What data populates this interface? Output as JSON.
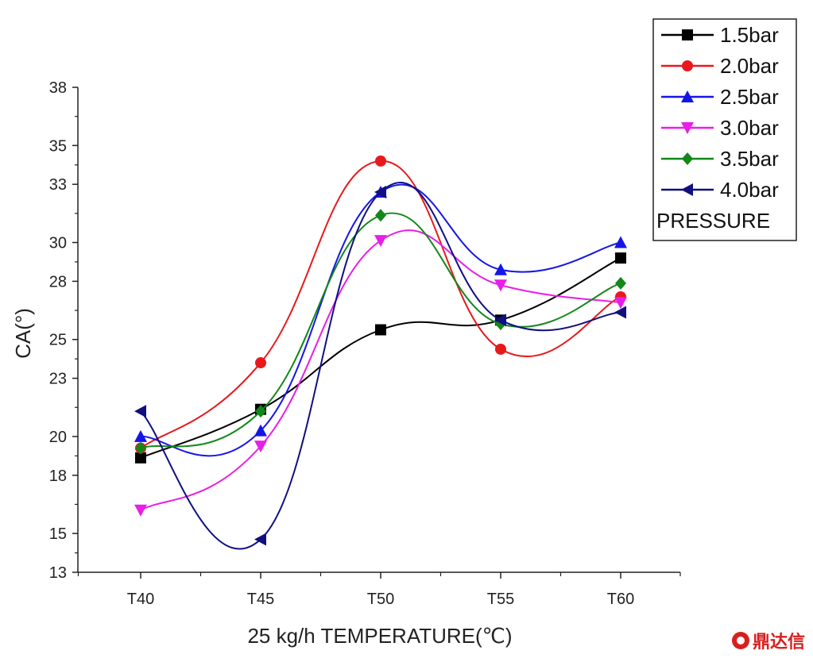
{
  "chart_data": {
    "type": "line",
    "smooth": true,
    "categories": [
      "T40",
      "T45",
      "T50",
      "T55",
      "T60"
    ],
    "xlabel": "25 kg/h TEMPERATURE(℃)",
    "ylabel": "CA(°)",
    "ylim": [
      13,
      38
    ],
    "yticks": [
      13,
      15,
      18,
      20,
      23,
      25,
      28,
      30,
      33,
      35,
      38
    ],
    "legend_position": "top-right",
    "legend_title": "PRESSURE",
    "series": [
      {
        "name": "1.5bar",
        "color": "#000000",
        "marker": "square",
        "values": [
          18.9,
          21.4,
          25.5,
          26.0,
          29.2
        ]
      },
      {
        "name": "2.0bar",
        "color": "#e8191c",
        "marker": "circle",
        "values": [
          19.4,
          23.8,
          34.2,
          24.5,
          27.2
        ]
      },
      {
        "name": "2.5bar",
        "color": "#1515e8",
        "marker": "triangle-up",
        "values": [
          20.0,
          20.3,
          32.6,
          28.6,
          30.0
        ]
      },
      {
        "name": "3.0bar",
        "color": "#e81ee8",
        "marker": "triangle-down",
        "values": [
          16.2,
          19.5,
          30.1,
          27.8,
          26.9
        ]
      },
      {
        "name": "3.5bar",
        "color": "#13871a",
        "marker": "diamond",
        "values": [
          19.4,
          21.3,
          31.4,
          25.8,
          27.9
        ]
      },
      {
        "name": "4.0bar",
        "color": "#101080",
        "marker": "triangle-left",
        "values": [
          21.3,
          14.7,
          32.6,
          26.0,
          26.4
        ]
      }
    ]
  },
  "watermark": {
    "text": "鼎达信",
    "color": "#d6201f"
  }
}
